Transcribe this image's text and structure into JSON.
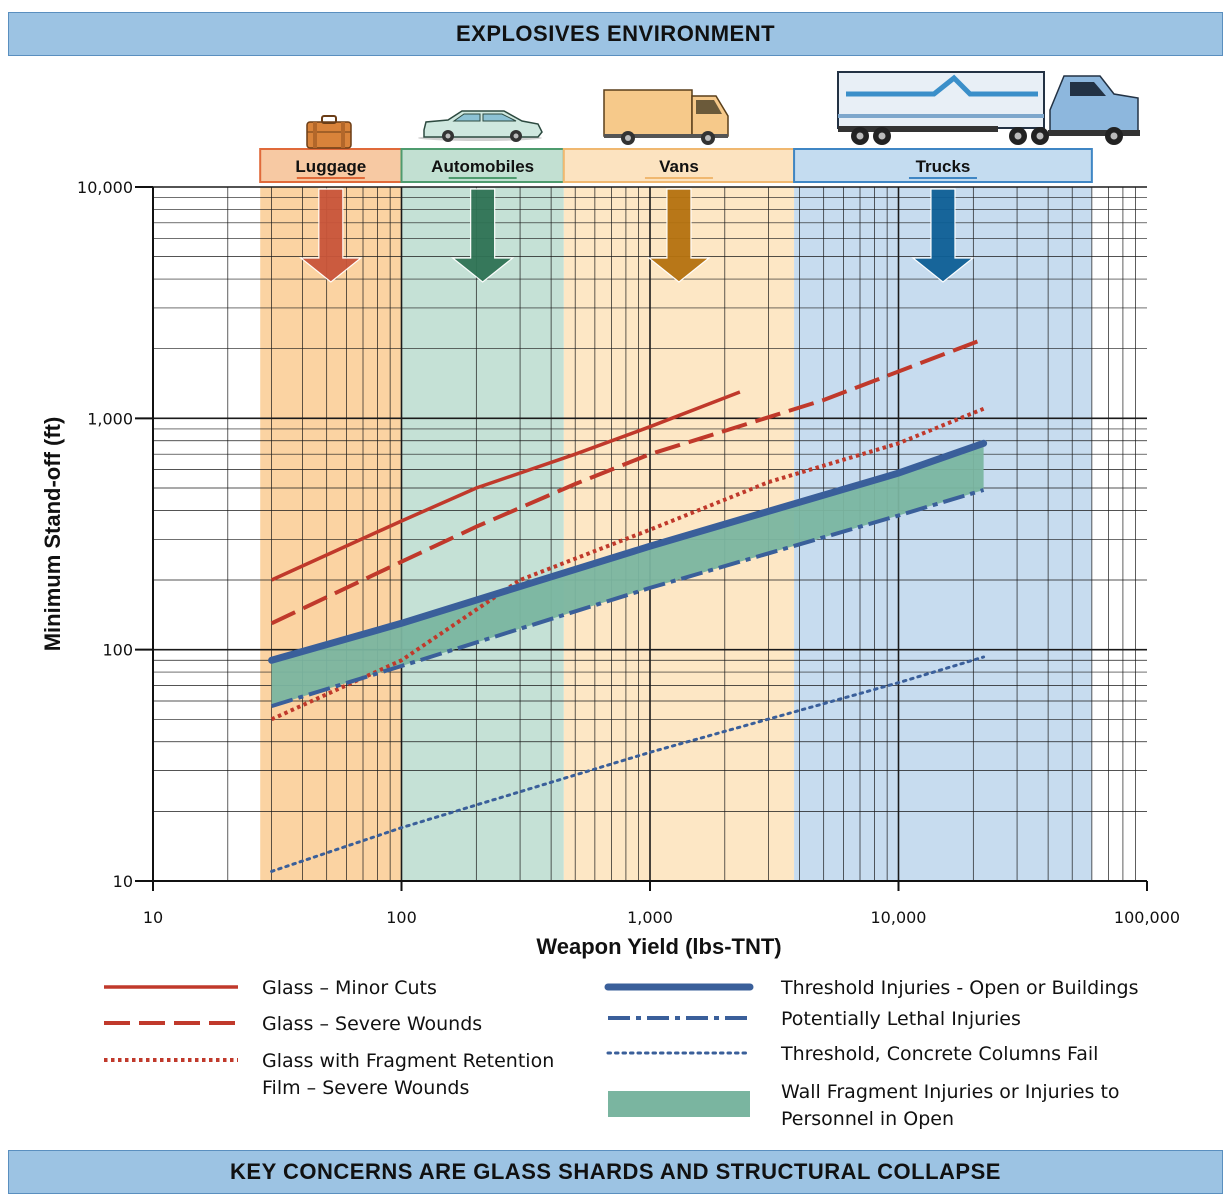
{
  "header": {
    "title": "EXPLOSIVES ENVIRONMENT"
  },
  "footer": {
    "title": "KEY CONCERNS ARE GLASS SHARDS AND STRUCTURAL COLLAPSE"
  },
  "chart_data": {
    "type": "line",
    "title": "",
    "xlabel": "Weapon Yield (lbs-TNT)",
    "ylabel": "Minimum Stand-off (ft)",
    "x_scale": "log",
    "y_scale": "log",
    "xlim": [
      10,
      100000
    ],
    "ylim": [
      10,
      10000
    ],
    "grid": true,
    "x_ticks": [
      {
        "value": 10,
        "label": "10"
      },
      {
        "value": 100,
        "label": "100"
      },
      {
        "value": 1000,
        "label": "1,000"
      },
      {
        "value": 10000,
        "label": "10,000"
      },
      {
        "value": 100000,
        "label": "100,000"
      }
    ],
    "y_ticks": [
      {
        "value": 10,
        "label": "10"
      },
      {
        "value": 100,
        "label": "100"
      },
      {
        "value": 1000,
        "label": "1,000"
      },
      {
        "value": 10000,
        "label": "10,000"
      }
    ],
    "categories": [
      {
        "name": "Luggage",
        "x_range": [
          27,
          100
        ],
        "band_color": "#fbd3a2",
        "box_color": "#f7c9a3",
        "border_color": "#e06a3a",
        "arrow_color": "#c9553a",
        "icon": "suitcase-icon"
      },
      {
        "name": "Automobiles",
        "x_range": [
          100,
          450
        ],
        "band_color": "#c5e1d6",
        "box_color": "#c2e0d2",
        "border_color": "#4e9b6e",
        "arrow_color": "#2f7355",
        "icon": "car-icon"
      },
      {
        "name": "Vans",
        "x_range": [
          450,
          3800
        ],
        "band_color": "#fde7c5",
        "box_color": "#fce3c0",
        "border_color": "#f0b870",
        "arrow_color": "#b5720f",
        "icon": "van-icon"
      },
      {
        "name": "Trucks",
        "x_range": [
          3800,
          60000
        ],
        "band_color": "#c7dcef",
        "box_color": "#c4dcf0",
        "border_color": "#3f86c4",
        "arrow_color": "#0e5f96",
        "icon": "truck-icon"
      }
    ],
    "series": [
      {
        "name": "Glass – Minor Cuts",
        "style": "solid",
        "color": "#c0392b",
        "points": [
          [
            30,
            200
          ],
          [
            100,
            360
          ],
          [
            200,
            500
          ],
          [
            500,
            700
          ],
          [
            1000,
            920
          ],
          [
            2300,
            1300
          ]
        ]
      },
      {
        "name": "Glass – Severe Wounds",
        "style": "dashed",
        "color": "#c0392b",
        "points": [
          [
            30,
            130
          ],
          [
            100,
            240
          ],
          [
            200,
            340
          ],
          [
            500,
            520
          ],
          [
            1000,
            700
          ],
          [
            5000,
            1200
          ],
          [
            22000,
            2200
          ]
        ]
      },
      {
        "name": "Glass with Fragment Retention Film – Severe Wounds",
        "style": "dotted",
        "color": "#c0392b",
        "points": [
          [
            30,
            50
          ],
          [
            100,
            90
          ],
          [
            300,
            200
          ],
          [
            1000,
            330
          ],
          [
            3000,
            530
          ],
          [
            10000,
            780
          ],
          [
            22000,
            1100
          ]
        ]
      },
      {
        "name": "Threshold Injuries - Open or Buildings",
        "style": "thick",
        "color": "#3a5f9a",
        "points": [
          [
            30,
            90
          ],
          [
            100,
            130
          ],
          [
            1000,
            280
          ],
          [
            10000,
            580
          ],
          [
            22000,
            780
          ]
        ]
      },
      {
        "name": "Potentially Lethal Injuries",
        "style": "dashdot",
        "color": "#3a5f9a",
        "points": [
          [
            30,
            57
          ],
          [
            100,
            85
          ],
          [
            1000,
            185
          ],
          [
            10000,
            380
          ],
          [
            22000,
            490
          ]
        ]
      },
      {
        "name": "Threshold, Concrete Columns Fail",
        "style": "finedot",
        "color": "#3a5f9a",
        "points": [
          [
            30,
            11
          ],
          [
            100,
            17
          ],
          [
            1000,
            36
          ],
          [
            10000,
            72
          ],
          [
            22000,
            93
          ]
        ]
      }
    ],
    "band": {
      "name": "Wall Fragment Injuries or Injuries to Personnel in Open",
      "color": "#7ab5a0",
      "upper": "Threshold Injuries - Open or Buildings",
      "lower": "Potentially Lethal Injuries"
    },
    "legend": {
      "placement": "bottom",
      "left": [
        {
          "key": "Glass – Minor Cuts",
          "lines": [
            "Glass – Minor Cuts"
          ]
        },
        {
          "key": "Glass – Severe Wounds",
          "lines": [
            "Glass – Severe Wounds"
          ]
        },
        {
          "key": "Glass with Fragment Retention Film – Severe Wounds",
          "lines": [
            "Glass with Fragment Retention",
            "Film – Severe Wounds"
          ]
        }
      ],
      "right": [
        {
          "key": "Threshold Injuries - Open or Buildings",
          "lines": [
            "Threshold Injuries - Open or Buildings"
          ]
        },
        {
          "key": "Potentially Lethal Injuries",
          "lines": [
            "Potentially Lethal Injuries"
          ]
        },
        {
          "key": "Threshold, Concrete Columns Fail",
          "lines": [
            "Threshold, Concrete Columns Fail"
          ]
        },
        {
          "key": "Wall Fragment Injuries or Injuries to Personnel in Open",
          "lines": [
            "Wall Fragment Injuries or Injuries to",
            "Personnel in Open"
          ]
        }
      ]
    }
  }
}
